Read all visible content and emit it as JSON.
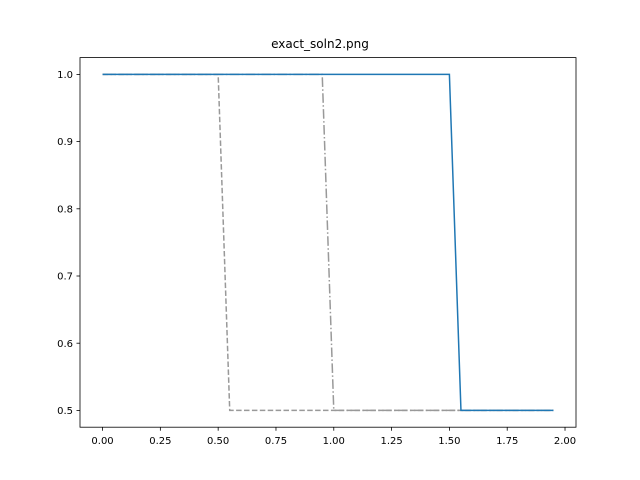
{
  "chart_data": {
    "type": "line",
    "title": "exact_soln2.png",
    "xlabel": "",
    "ylabel": "",
    "xlim": [
      -0.0975,
      2.0475
    ],
    "ylim": [
      0.475,
      1.025
    ],
    "grid": false,
    "legend": "none",
    "x_ticks": [
      0.0,
      0.25,
      0.5,
      0.75,
      1.0,
      1.25,
      1.5,
      1.75,
      2.0
    ],
    "x_tick_labels": [
      "0.00",
      "0.25",
      "0.50",
      "0.75",
      "1.00",
      "1.25",
      "1.50",
      "1.75",
      "2.00"
    ],
    "y_ticks": [
      0.5,
      0.6,
      0.7,
      0.8,
      0.9,
      1.0
    ],
    "y_tick_labels": [
      "0.5",
      "0.6",
      "0.7",
      "0.8",
      "0.9",
      "1.0"
    ],
    "series": [
      {
        "style": "dashed",
        "color": "#999999",
        "x": [
          0.0,
          0.5,
          0.55,
          1.95
        ],
        "y": [
          1.0,
          1.0,
          0.5,
          0.5
        ]
      },
      {
        "style": "dashdot",
        "color": "#999999",
        "x": [
          0.0,
          0.95,
          1.0,
          1.95
        ],
        "y": [
          1.0,
          1.0,
          0.5,
          0.5
        ]
      },
      {
        "style": "solid",
        "color": "#1f77b4",
        "x": [
          0.0,
          1.5,
          1.55,
          1.95
        ],
        "y": [
          1.0,
          1.0,
          0.5,
          0.5
        ]
      }
    ]
  }
}
